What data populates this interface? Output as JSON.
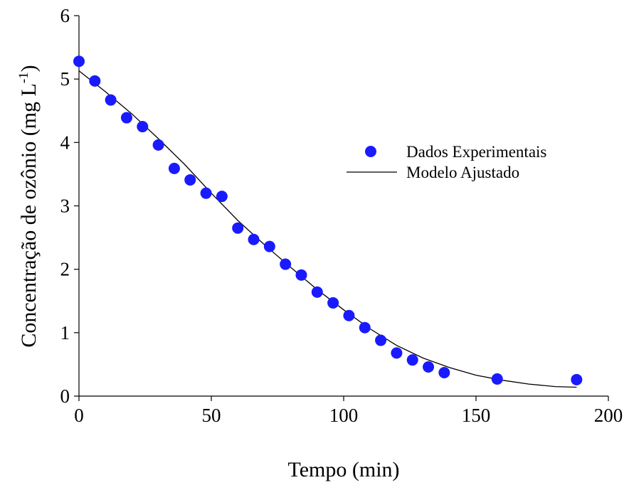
{
  "chart_data": {
    "type": "scatter",
    "xlabel": "Tempo (min)",
    "ylabel_main": "Concentração de ozônio (mg L",
    "ylabel_sup": "-1",
    "ylabel_close": ")",
    "xlim": [
      0,
      200
    ],
    "ylim": [
      0,
      6
    ],
    "xticks": [
      0,
      50,
      100,
      150,
      200
    ],
    "yticks": [
      0,
      1,
      2,
      3,
      4,
      5,
      6
    ],
    "grid": false,
    "legend_position": "right",
    "series": [
      {
        "name": "Dados Experimentais",
        "type": "scatter",
        "color": "#1a1aff",
        "x": [
          0,
          6,
          12,
          18,
          24,
          30,
          36,
          42,
          48,
          54,
          60,
          66,
          72,
          78,
          84,
          90,
          96,
          102,
          108,
          114,
          120,
          126,
          132,
          138,
          158,
          188
        ],
        "y": [
          5.28,
          4.97,
          4.67,
          4.39,
          4.25,
          3.96,
          3.59,
          3.41,
          3.2,
          3.15,
          2.65,
          2.47,
          2.36,
          2.08,
          1.91,
          1.64,
          1.47,
          1.27,
          1.08,
          0.88,
          0.68,
          0.57,
          0.46,
          0.37,
          0.27,
          0.26
        ]
      },
      {
        "name": "Modelo Ajustado",
        "type": "line",
        "color": "#000000",
        "x": [
          0,
          10,
          20,
          30,
          40,
          50,
          60,
          70,
          80,
          90,
          100,
          110,
          120,
          130,
          140,
          150,
          160,
          170,
          180,
          188
        ],
        "y": [
          5.13,
          4.8,
          4.45,
          4.06,
          3.65,
          3.2,
          2.77,
          2.39,
          2.03,
          1.68,
          1.36,
          1.06,
          0.8,
          0.6,
          0.45,
          0.33,
          0.25,
          0.19,
          0.15,
          0.14
        ]
      }
    ]
  }
}
